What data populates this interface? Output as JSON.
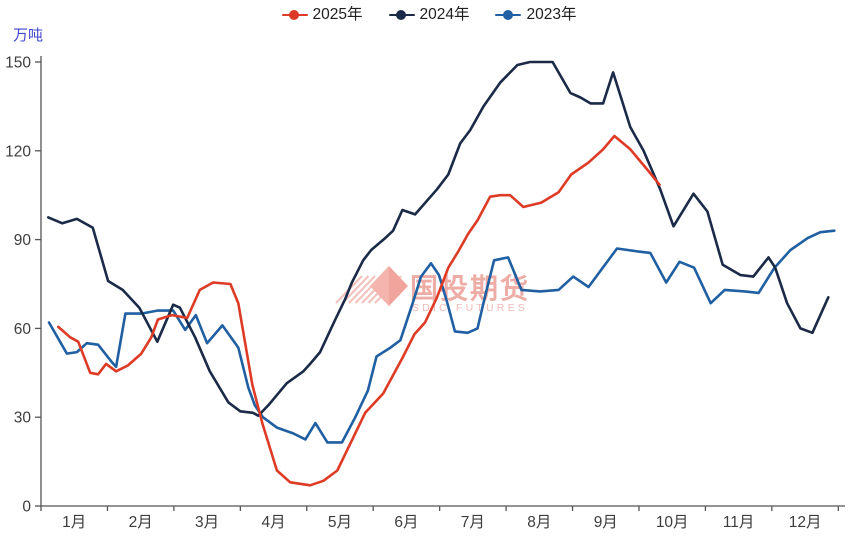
{
  "axis_unit_label": "万吨",
  "legend": {
    "items": [
      "2025年",
      "2024年",
      "2023年"
    ]
  },
  "watermark": {
    "text": "国投期货",
    "subtext": "SDIC FUTURES",
    "color": "#e2766b",
    "diamond_color": "#f0a49b",
    "hatch_color": "#f0b5ae"
  },
  "chart_data": {
    "type": "line",
    "title": "",
    "xlabel": "",
    "ylabel": "万吨",
    "ylim": [
      0,
      150
    ],
    "yticks": [
      0,
      30,
      60,
      90,
      120,
      150
    ],
    "xtick_labels": [
      "1月",
      "2月",
      "3月",
      "4月",
      "5月",
      "6月",
      "7月",
      "8月",
      "9月",
      "10月",
      "11月",
      "12月"
    ],
    "grid": false,
    "legend_position": "top-center",
    "x_unit": "month_position_0_to_12",
    "series": [
      {
        "name": "2025年",
        "color": "#dd3b26",
        "points": [
          [
            0.26,
            60.5
          ],
          [
            0.44,
            57
          ],
          [
            0.56,
            55.5
          ],
          [
            0.74,
            45
          ],
          [
            0.86,
            44.5
          ],
          [
            0.98,
            48
          ],
          [
            1.13,
            45.5
          ],
          [
            1.31,
            47.5
          ],
          [
            1.51,
            51.5
          ],
          [
            1.66,
            57
          ],
          [
            1.76,
            63
          ],
          [
            1.97,
            64.5
          ],
          [
            2.2,
            63.5
          ],
          [
            2.39,
            73
          ],
          [
            2.59,
            75.5
          ],
          [
            2.85,
            75
          ],
          [
            2.97,
            68.5
          ],
          [
            3.18,
            41
          ],
          [
            3.33,
            28
          ],
          [
            3.55,
            12
          ],
          [
            3.75,
            8
          ],
          [
            4.05,
            7
          ],
          [
            4.25,
            8.5
          ],
          [
            4.46,
            12
          ],
          [
            4.61,
            19
          ],
          [
            4.88,
            31.5
          ],
          [
            5.15,
            38
          ],
          [
            5.44,
            50
          ],
          [
            5.62,
            58
          ],
          [
            5.78,
            62
          ],
          [
            5.96,
            70.5
          ],
          [
            6.13,
            80.5
          ],
          [
            6.28,
            86
          ],
          [
            6.43,
            92
          ],
          [
            6.57,
            96.5
          ],
          [
            6.76,
            104.5
          ],
          [
            6.91,
            105
          ],
          [
            7.06,
            105
          ],
          [
            7.26,
            101
          ],
          [
            7.53,
            102.5
          ],
          [
            7.79,
            106
          ],
          [
            7.98,
            112
          ],
          [
            8.24,
            116
          ],
          [
            8.46,
            120.5
          ],
          [
            8.63,
            125
          ],
          [
            8.87,
            120.5
          ],
          [
            9.13,
            113.5
          ],
          [
            9.31,
            108.5
          ]
        ]
      },
      {
        "name": "2024年",
        "color": "#1b2a47",
        "points": [
          [
            0.11,
            97.5
          ],
          [
            0.32,
            95.5
          ],
          [
            0.54,
            97
          ],
          [
            0.78,
            94
          ],
          [
            1.01,
            76
          ],
          [
            1.23,
            73
          ],
          [
            1.48,
            67
          ],
          [
            1.75,
            55.5
          ],
          [
            1.99,
            68
          ],
          [
            2.09,
            67
          ],
          [
            2.32,
            57
          ],
          [
            2.54,
            45.5
          ],
          [
            2.82,
            35
          ],
          [
            3.0,
            32
          ],
          [
            3.19,
            31.5
          ],
          [
            3.27,
            30.5
          ],
          [
            3.42,
            34
          ],
          [
            3.7,
            41.5
          ],
          [
            3.95,
            45.5
          ],
          [
            4.05,
            48
          ],
          [
            4.2,
            52
          ],
          [
            4.43,
            63
          ],
          [
            4.58,
            70
          ],
          [
            4.68,
            75.5
          ],
          [
            4.85,
            83
          ],
          [
            4.97,
            86.5
          ],
          [
            5.18,
            90.5
          ],
          [
            5.3,
            93
          ],
          [
            5.44,
            100
          ],
          [
            5.63,
            98.5
          ],
          [
            5.96,
            107
          ],
          [
            6.13,
            112
          ],
          [
            6.31,
            122.5
          ],
          [
            6.46,
            127
          ],
          [
            6.66,
            135
          ],
          [
            6.91,
            143
          ],
          [
            7.17,
            149
          ],
          [
            7.36,
            150
          ],
          [
            7.7,
            150
          ],
          [
            7.97,
            139.5
          ],
          [
            8.12,
            138
          ],
          [
            8.27,
            136
          ],
          [
            8.46,
            136
          ],
          [
            8.61,
            146.5
          ],
          [
            8.87,
            128
          ],
          [
            9.07,
            120
          ],
          [
            9.32,
            107
          ],
          [
            9.52,
            94.5
          ],
          [
            9.82,
            105.5
          ],
          [
            10.03,
            99.5
          ],
          [
            10.26,
            81.5
          ],
          [
            10.53,
            78
          ],
          [
            10.72,
            77.5
          ],
          [
            10.95,
            84
          ],
          [
            11.05,
            80.5
          ],
          [
            11.23,
            68.5
          ],
          [
            11.43,
            60
          ],
          [
            11.61,
            58.5
          ],
          [
            11.85,
            70.5
          ]
        ]
      },
      {
        "name": "2023年",
        "color": "#1f5fa2",
        "points": [
          [
            0.12,
            62
          ],
          [
            0.39,
            51.5
          ],
          [
            0.54,
            52
          ],
          [
            0.69,
            55
          ],
          [
            0.86,
            54.5
          ],
          [
            1.07,
            48.5
          ],
          [
            1.13,
            47
          ],
          [
            1.27,
            65
          ],
          [
            1.51,
            65
          ],
          [
            1.75,
            66
          ],
          [
            1.99,
            66
          ],
          [
            2.17,
            59.5
          ],
          [
            2.33,
            64.5
          ],
          [
            2.5,
            55
          ],
          [
            2.73,
            61
          ],
          [
            2.97,
            53.5
          ],
          [
            3.12,
            40
          ],
          [
            3.22,
            34
          ],
          [
            3.34,
            30
          ],
          [
            3.55,
            26.5
          ],
          [
            3.8,
            24.5
          ],
          [
            3.98,
            22.5
          ],
          [
            4.13,
            28
          ],
          [
            4.31,
            21.5
          ],
          [
            4.53,
            21.5
          ],
          [
            4.73,
            30
          ],
          [
            4.92,
            39
          ],
          [
            5.05,
            50.5
          ],
          [
            5.26,
            53.5
          ],
          [
            5.41,
            56
          ],
          [
            5.6,
            69
          ],
          [
            5.72,
            77.5
          ],
          [
            5.87,
            82
          ],
          [
            5.99,
            78
          ],
          [
            6.11,
            69
          ],
          [
            6.23,
            59
          ],
          [
            6.42,
            58.5
          ],
          [
            6.57,
            60
          ],
          [
            6.69,
            71.5
          ],
          [
            6.82,
            83
          ],
          [
            7.03,
            84
          ],
          [
            7.23,
            73
          ],
          [
            7.51,
            72.5
          ],
          [
            7.79,
            73
          ],
          [
            8.01,
            77.5
          ],
          [
            8.24,
            74
          ],
          [
            8.67,
            87
          ],
          [
            8.98,
            86
          ],
          [
            9.17,
            85.5
          ],
          [
            9.41,
            75.5
          ],
          [
            9.61,
            82.5
          ],
          [
            9.83,
            80.5
          ],
          [
            10.08,
            68.5
          ],
          [
            10.29,
            73
          ],
          [
            10.59,
            72.5
          ],
          [
            10.8,
            72
          ],
          [
            11.04,
            80.5
          ],
          [
            11.28,
            86.5
          ],
          [
            11.54,
            90.5
          ],
          [
            11.73,
            92.5
          ],
          [
            11.94,
            93
          ]
        ]
      }
    ]
  }
}
